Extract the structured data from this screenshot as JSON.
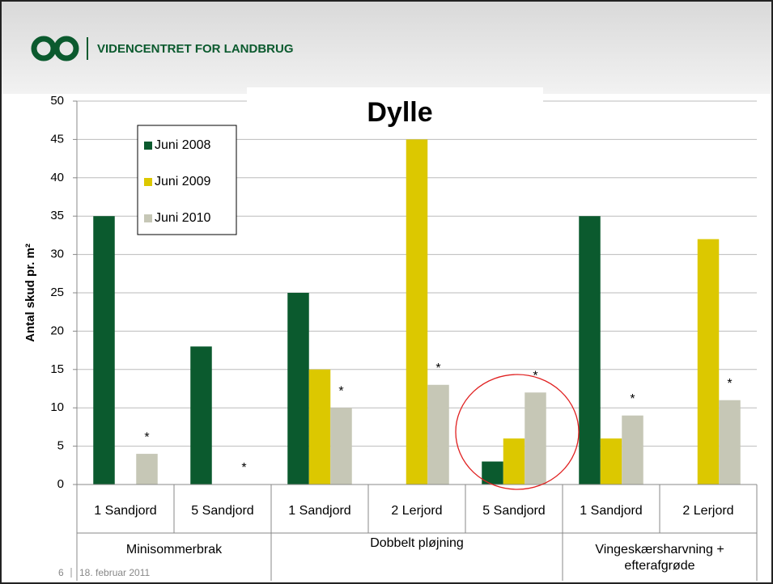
{
  "header": {
    "logo_text": "VIDENCENTRET FOR LANDBRUG"
  },
  "footer": {
    "page": "6",
    "date": "18. februar 2011"
  },
  "chart_data": {
    "type": "bar",
    "title": "Dylle",
    "y_label": "Antal skud pr. m²",
    "categories": [
      "1 Sandjord",
      "5 Sandjord",
      "1 Sandjord",
      "2 Lerjord",
      "5 Sandjord",
      "1 Sandjord",
      "2 Lerjord"
    ],
    "groups": [
      {
        "label": "Minisommerbrak",
        "span": 2
      },
      {
        "label": "Dobbelt pløjning",
        "span": 3
      },
      {
        "label": "Vingeskærsharvning + efterafgrøde",
        "span": 2
      }
    ],
    "series": [
      {
        "name": "Juni 2008",
        "color": "#0b5a2e",
        "values": [
          35,
          18,
          25,
          null,
          3,
          35,
          null
        ]
      },
      {
        "name": "Juni 2009",
        "color": "#dcc800",
        "values": [
          null,
          null,
          15,
          45,
          6,
          6,
          32
        ]
      },
      {
        "name": "Juni 2010",
        "color": "#c6c7b6",
        "values": [
          4,
          0,
          10,
          13,
          12,
          9,
          11
        ],
        "markers": [
          "*",
          "*",
          "*",
          "*",
          "*",
          "*",
          "*"
        ]
      }
    ],
    "ylim": [
      0,
      50
    ],
    "yticks": [
      0,
      5,
      10,
      15,
      20,
      25,
      30,
      35,
      40,
      45,
      50
    ],
    "grid": true
  }
}
